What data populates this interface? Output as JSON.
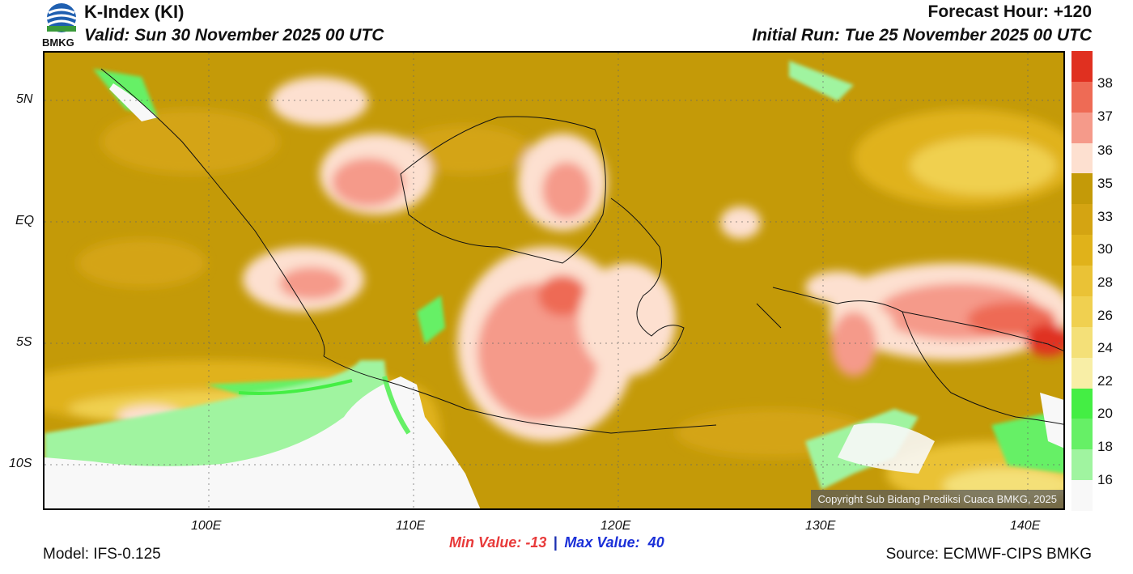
{
  "header": {
    "title": "K-Index (KI)",
    "valid": "Valid: Sun 30 November 2025 00 UTC",
    "forecast_hour": "Forecast Hour: +120",
    "initial_run": "Initial Run: Tue 25 November 2025 00 UTC",
    "logo_text": "BMKG"
  },
  "map": {
    "lat_labels": [
      "5N",
      "EQ",
      "5S",
      "10S"
    ],
    "lon_labels": [
      "100E",
      "110E",
      "120E",
      "130E",
      "140E"
    ],
    "copyright": "Copyright Sub Bidang Prediksi Cuaca BMKG, 2025"
  },
  "colorbar": {
    "labels": [
      "38",
      "37",
      "36",
      "35",
      "33",
      "30",
      "28",
      "26",
      "24",
      "22",
      "20",
      "18",
      "16"
    ],
    "colors": [
      "#e03020",
      "#ee6b55",
      "#f59a8a",
      "#fde0d0",
      "#c49a08",
      "#d4a412",
      "#e0b21a",
      "#eac236",
      "#f0d050",
      "#f4e078",
      "#f8eea6",
      "#44ee44",
      "#66f066",
      "#a0f4a0",
      "#f8f8f8"
    ]
  },
  "footer": {
    "model": "Model: IFS-0.125",
    "min_value": "Min Value: -13",
    "separator": "|",
    "max_value": "Max Value:  40",
    "source": "Source: ECMWF-CIPS BMKG"
  }
}
